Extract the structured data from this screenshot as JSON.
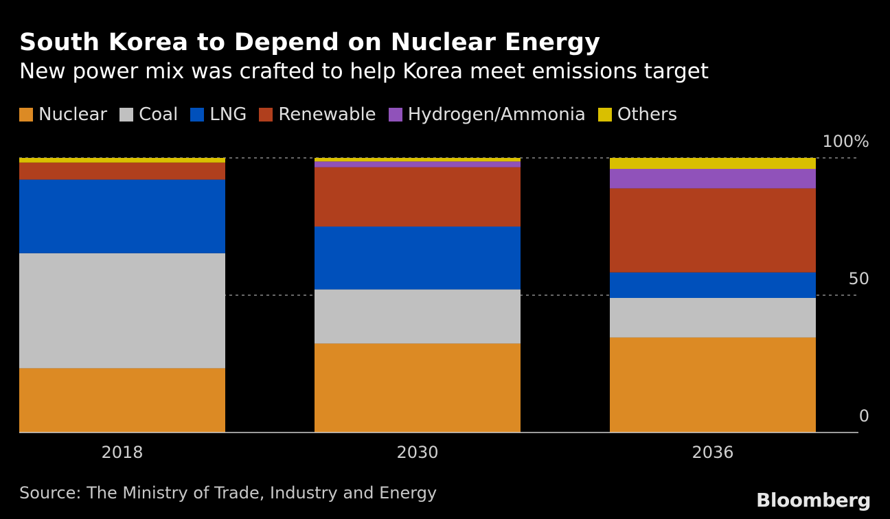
{
  "title": "South Korea to Depend on Nuclear Energy",
  "subtitle": "New power mix was crafted to help Korea meet emissions target",
  "source": "Source: The Ministry of Trade, Industry and Energy",
  "logo": "Bloomberg",
  "chart_data": {
    "type": "bar",
    "stacked": true,
    "categories": [
      "2018",
      "2030",
      "2036"
    ],
    "series": [
      {
        "name": "Nuclear",
        "color": "#dc8a24",
        "values": [
          23.4,
          32.4,
          34.6
        ]
      },
      {
        "name": "Coal",
        "color": "#c0c0c0",
        "values": [
          41.9,
          19.7,
          14.4
        ]
      },
      {
        "name": "LNG",
        "color": "#0050bb",
        "values": [
          26.8,
          22.9,
          9.3
        ]
      },
      {
        "name": "Renewable",
        "color": "#b03f1d",
        "values": [
          6.2,
          21.6,
          30.6
        ]
      },
      {
        "name": "Hydrogen/Ammonia",
        "color": "#9052ba",
        "values": [
          0,
          2.1,
          7.1
        ]
      },
      {
        "name": "Others",
        "color": "#d9bf00",
        "values": [
          1.7,
          1.3,
          4.0
        ]
      }
    ],
    "yticks": [
      {
        "value": 0,
        "label": "0"
      },
      {
        "value": 50,
        "label": "50"
      },
      {
        "value": 100,
        "label": "100%"
      }
    ],
    "ylim": [
      0,
      100
    ],
    "grid": true,
    "legend_position": "top-left",
    "xlabel": "",
    "ylabel": ""
  }
}
